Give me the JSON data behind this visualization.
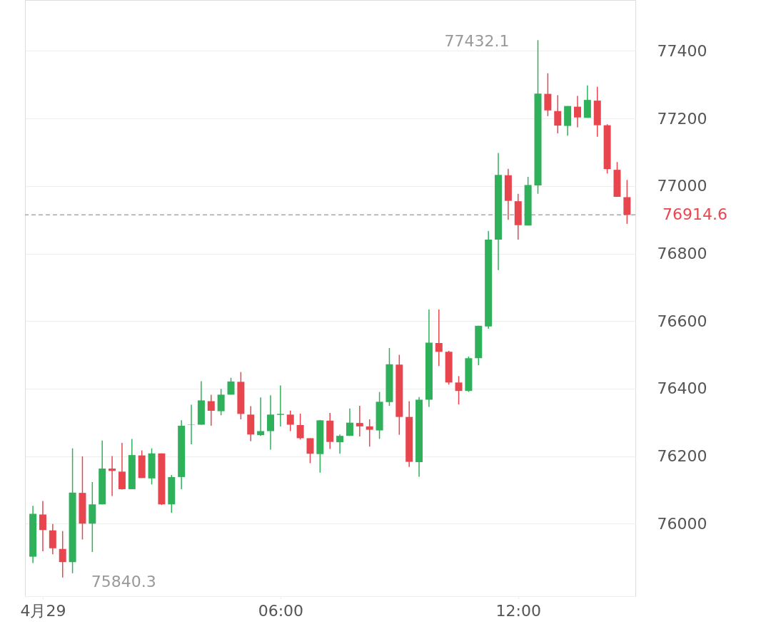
{
  "chart_data": {
    "type": "candlestick",
    "x": [
      -0.25,
      0,
      0.25,
      0.5,
      0.75,
      1,
      1.25,
      1.5,
      1.75,
      2,
      2.25,
      2.5,
      2.75,
      3,
      3.25,
      3.5,
      3.75,
      4,
      4.25,
      4.5,
      4.75,
      5,
      5.25,
      5.5,
      5.75,
      6,
      6.25,
      6.5,
      6.75,
      7,
      7.25,
      7.5,
      7.75,
      8,
      8.25,
      8.5,
      8.75,
      9,
      9.25,
      9.5,
      9.75,
      10,
      10.25,
      10.5,
      10.75,
      11,
      11.25,
      11.5,
      11.75,
      12,
      12.25,
      12.5,
      12.75,
      13,
      13.25,
      13.5,
      13.75,
      14,
      14.25,
      14.5,
      14.75
    ],
    "ohlc": [
      [
        75902,
        76053,
        75883,
        76029
      ],
      [
        76027,
        76067,
        75918,
        75981
      ],
      [
        75980,
        75999,
        75909,
        75927
      ],
      [
        75925,
        75978,
        75840.3,
        75886
      ],
      [
        75886,
        76223,
        75853,
        76092
      ],
      [
        76091,
        76199,
        75953,
        76000
      ],
      [
        76000,
        76123,
        75916,
        76057
      ],
      [
        76057,
        76246,
        76057,
        76163
      ],
      [
        76163,
        76200,
        76082,
        76156
      ],
      [
        76154,
        76239,
        76101,
        76102
      ],
      [
        76102,
        76251,
        76102,
        76203
      ],
      [
        76202,
        76217,
        76135,
        76135
      ],
      [
        76134,
        76223,
        76116,
        76208
      ],
      [
        76208,
        76208,
        76055,
        76057
      ],
      [
        76057,
        76144,
        76032,
        76138
      ],
      [
        76138,
        76306,
        76102,
        76290
      ],
      [
        76293,
        76352,
        76235,
        76294
      ],
      [
        76293,
        76422,
        76293,
        76365
      ],
      [
        76363,
        76382,
        76290,
        76334
      ],
      [
        76333,
        76399,
        76321,
        76382
      ],
      [
        76382,
        76432,
        76382,
        76421
      ],
      [
        76420,
        76449,
        76309,
        76325
      ],
      [
        76323,
        76348,
        76244,
        76264
      ],
      [
        76262,
        76374,
        76260,
        76274
      ],
      [
        76274,
        76380,
        76219,
        76323
      ],
      [
        76322,
        76409,
        76288,
        76325
      ],
      [
        76323,
        76335,
        76274,
        76293
      ],
      [
        76292,
        76326,
        76249,
        76253
      ],
      [
        76253,
        76253,
        76179,
        76207
      ],
      [
        76206,
        76307,
        76151,
        76306
      ],
      [
        76305,
        76328,
        76221,
        76242
      ],
      [
        76241,
        76264,
        76207,
        76260
      ],
      [
        76260,
        76341,
        76260,
        76299
      ],
      [
        76298,
        76349,
        76258,
        76288
      ],
      [
        76288,
        76309,
        76228,
        76278
      ],
      [
        76276,
        76390,
        76251,
        76361
      ],
      [
        76360,
        76520,
        76349,
        76472
      ],
      [
        76471,
        76500,
        76263,
        76316
      ],
      [
        76316,
        76363,
        76168,
        76183
      ],
      [
        76182,
        76375,
        76139,
        76367
      ],
      [
        76367,
        76634,
        76346,
        76536
      ],
      [
        76535,
        76634,
        76467,
        76509
      ],
      [
        76509,
        76512,
        76412,
        76418
      ],
      [
        76418,
        76437,
        76353,
        76393
      ],
      [
        76393,
        76495,
        76390,
        76490
      ],
      [
        76490,
        76586,
        76469,
        76586
      ],
      [
        76584,
        76867,
        76577,
        76841
      ],
      [
        76841,
        77098,
        76751,
        77033
      ],
      [
        77032,
        77051,
        76900,
        76956
      ],
      [
        76955,
        76977,
        76841,
        76884
      ],
      [
        76883,
        77027,
        76883,
        77003
      ],
      [
        77002,
        77432.1,
        76977,
        77274
      ],
      [
        77273,
        77334,
        77207,
        77224
      ],
      [
        77222,
        77269,
        77156,
        77179
      ],
      [
        77178,
        77237,
        77149,
        77237
      ],
      [
        77235,
        77267,
        77174,
        77203
      ],
      [
        77202,
        77298,
        77202,
        77255
      ],
      [
        77253,
        77294,
        77146,
        77180
      ],
      [
        77180,
        77183,
        77037,
        77050
      ],
      [
        77048,
        77071,
        76968,
        76968
      ],
      [
        76967,
        77018,
        76888,
        76914.6
      ]
    ],
    "colors": [
      "#2eb15a",
      "#e8464f",
      "#e8464f",
      "#e8464f",
      "#2eb15a",
      "#e8464f",
      "#2eb15a",
      "#2eb15a",
      "#e8464f",
      "#e8464f",
      "#2eb15a",
      "#e8464f",
      "#2eb15a",
      "#e8464f",
      "#2eb15a",
      "#2eb15a",
      "#2eb15a",
      "#2eb15a",
      "#e8464f",
      "#2eb15a",
      "#2eb15a",
      "#e8464f",
      "#e8464f",
      "#2eb15a",
      "#2eb15a",
      "#2eb15a",
      "#e8464f",
      "#e8464f",
      "#e8464f",
      "#2eb15a",
      "#e8464f",
      "#2eb15a",
      "#2eb15a",
      "#e8464f",
      "#e8464f",
      "#2eb15a",
      "#2eb15a",
      "#e8464f",
      "#e8464f",
      "#2eb15a",
      "#2eb15a",
      "#e8464f",
      "#e8464f",
      "#e8464f",
      "#2eb15a",
      "#2eb15a",
      "#2eb15a",
      "#2eb15a",
      "#e8464f",
      "#e8464f",
      "#2eb15a",
      "#2eb15a",
      "#e8464f",
      "#e8464f",
      "#2eb15a",
      "#e8464f",
      "#2eb15a",
      "#e8464f",
      "#e8464f",
      "#e8464f",
      "#e8464f"
    ],
    "xlim": [
      -0.45,
      14.96
    ],
    "xticks": [
      {
        "value": 0,
        "label": "4月29"
      },
      {
        "value": 6,
        "label": "06:00"
      },
      {
        "value": 12,
        "label": "12:00"
      }
    ],
    "ylim": [
      75785,
      77551
    ],
    "yticks": [
      76000,
      76200,
      76400,
      76600,
      76800,
      77000,
      77200,
      77400
    ],
    "grid": "y",
    "ref_lines": [
      {
        "axis": "y",
        "value": 76914.6,
        "label": "76914.6",
        "color": "#aaaaaa",
        "line_style": "dashed"
      }
    ],
    "annotations": [
      "77432.1",
      "75840.3"
    ]
  }
}
